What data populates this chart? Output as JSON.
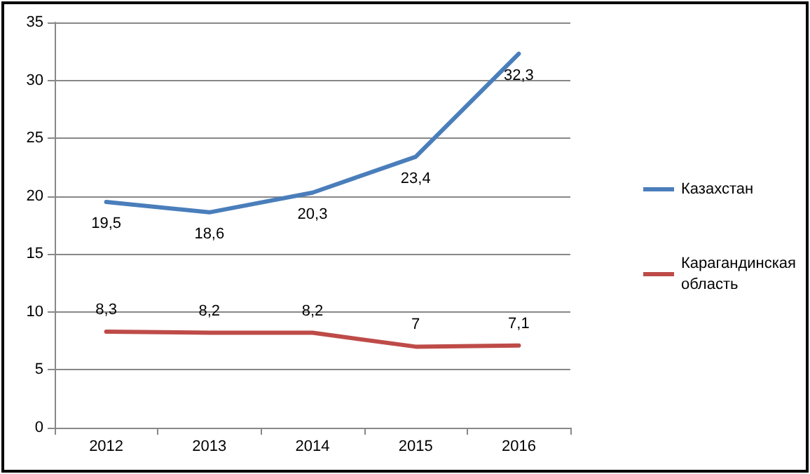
{
  "chart_data": {
    "type": "line",
    "categories": [
      "2012",
      "2013",
      "2014",
      "2015",
      "2016"
    ],
    "series": [
      {
        "name": "Казахстан",
        "color": "#4a7ebb",
        "values": [
          19.5,
          18.6,
          20.3,
          23.4,
          32.3
        ],
        "value_labels": [
          "19,5",
          "18,6",
          "20,3",
          "23,4",
          "32,3"
        ]
      },
      {
        "name": "Карагандинская область",
        "color": "#be4b48",
        "values": [
          8.3,
          8.2,
          8.2,
          7,
          7.1
        ],
        "value_labels": [
          "8,3",
          "8,2",
          "8,2",
          "7",
          "7,1"
        ]
      }
    ],
    "ylim": [
      0,
      35
    ],
    "yticks": [
      0,
      5,
      10,
      15,
      20,
      25,
      30,
      35
    ],
    "grid": "y",
    "legend": "right",
    "marker": "none",
    "line_style": "solid"
  }
}
